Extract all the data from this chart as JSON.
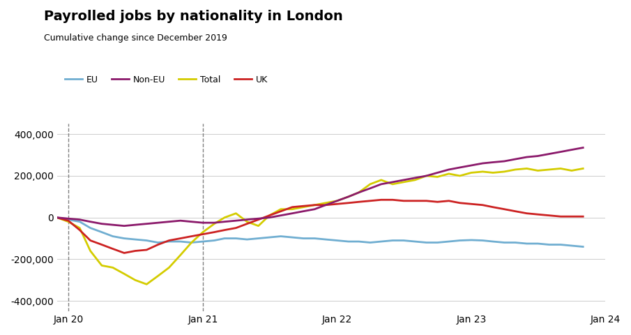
{
  "title": "Payrolled jobs by nationality in London",
  "subtitle": "Cumulative change since December 2019",
  "colors": {
    "EU": "#70aed1",
    "NonEU": "#8b1a6b",
    "Total": "#d4cc00",
    "UK": "#cc2222"
  },
  "legend_labels": [
    "EU",
    "Non-EU",
    "Total",
    "UK"
  ],
  "vline_dates": [
    "Jan 20",
    "Jan 21"
  ],
  "ylim": [
    -450000,
    450000
  ],
  "yticks": [
    -400000,
    -200000,
    0,
    200000,
    400000
  ],
  "background_color": "#ffffff",
  "EU": [
    0,
    -10000,
    -20000,
    -50000,
    -70000,
    -90000,
    -100000,
    -105000,
    -110000,
    -120000,
    -115000,
    -115000,
    -120000,
    -115000,
    -110000,
    -100000,
    -100000,
    -105000,
    -100000,
    -95000,
    -90000,
    -95000,
    -100000,
    -100000,
    -105000,
    -110000,
    -115000,
    -115000,
    -120000,
    -115000,
    -110000,
    -110000,
    -115000,
    -120000,
    -120000,
    -115000,
    -110000,
    -108000,
    -110000,
    -115000,
    -120000,
    -120000,
    -125000,
    -125000,
    -130000,
    -130000,
    -135000,
    -140000
  ],
  "NonEU": [
    0,
    -5000,
    -10000,
    -20000,
    -30000,
    -35000,
    -40000,
    -35000,
    -30000,
    -25000,
    -20000,
    -15000,
    -20000,
    -25000,
    -25000,
    -20000,
    -15000,
    -10000,
    -5000,
    0,
    10000,
    20000,
    30000,
    40000,
    60000,
    80000,
    100000,
    120000,
    140000,
    160000,
    170000,
    180000,
    190000,
    200000,
    215000,
    230000,
    240000,
    250000,
    260000,
    265000,
    270000,
    280000,
    290000,
    295000,
    305000,
    315000,
    325000,
    335000
  ],
  "Total": [
    0,
    -20000,
    -50000,
    -160000,
    -230000,
    -240000,
    -270000,
    -300000,
    -320000,
    -280000,
    -240000,
    -180000,
    -120000,
    -70000,
    -30000,
    0,
    20000,
    -20000,
    -40000,
    10000,
    40000,
    40000,
    50000,
    60000,
    70000,
    80000,
    100000,
    120000,
    160000,
    180000,
    160000,
    170000,
    180000,
    200000,
    195000,
    210000,
    200000,
    215000,
    220000,
    215000,
    220000,
    230000,
    235000,
    225000,
    230000,
    235000,
    225000,
    235000
  ],
  "UK": [
    0,
    -15000,
    -60000,
    -110000,
    -130000,
    -150000,
    -170000,
    -160000,
    -155000,
    -130000,
    -110000,
    -100000,
    -90000,
    -80000,
    -70000,
    -60000,
    -50000,
    -30000,
    -10000,
    10000,
    30000,
    50000,
    55000,
    60000,
    60000,
    65000,
    70000,
    75000,
    80000,
    85000,
    85000,
    80000,
    80000,
    80000,
    75000,
    80000,
    70000,
    65000,
    60000,
    50000,
    40000,
    30000,
    20000,
    15000,
    10000,
    5000,
    5000,
    5000
  ],
  "n_points": 48
}
